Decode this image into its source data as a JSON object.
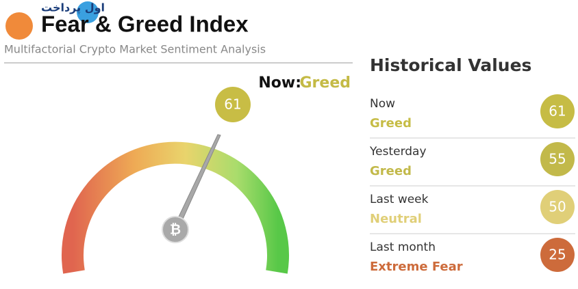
{
  "logo": {
    "name": "اول پرداخت"
  },
  "header": {
    "title": "Fear & Greed Index",
    "subtitle": "Multifactorial Crypto Market Sentiment Analysis"
  },
  "now": {
    "label": "Now:",
    "status": "Greed",
    "value": 61
  },
  "historical": {
    "title": "Historical Values",
    "rows": [
      {
        "label": "Now",
        "status": "Greed",
        "value": 61
      },
      {
        "label": "Yesterday",
        "status": "Greed",
        "value": 55
      },
      {
        "label": "Last week",
        "status": "Neutral",
        "value": 50
      },
      {
        "label": "Last month",
        "status": "Extreme Fear",
        "value": 25
      }
    ]
  }
}
